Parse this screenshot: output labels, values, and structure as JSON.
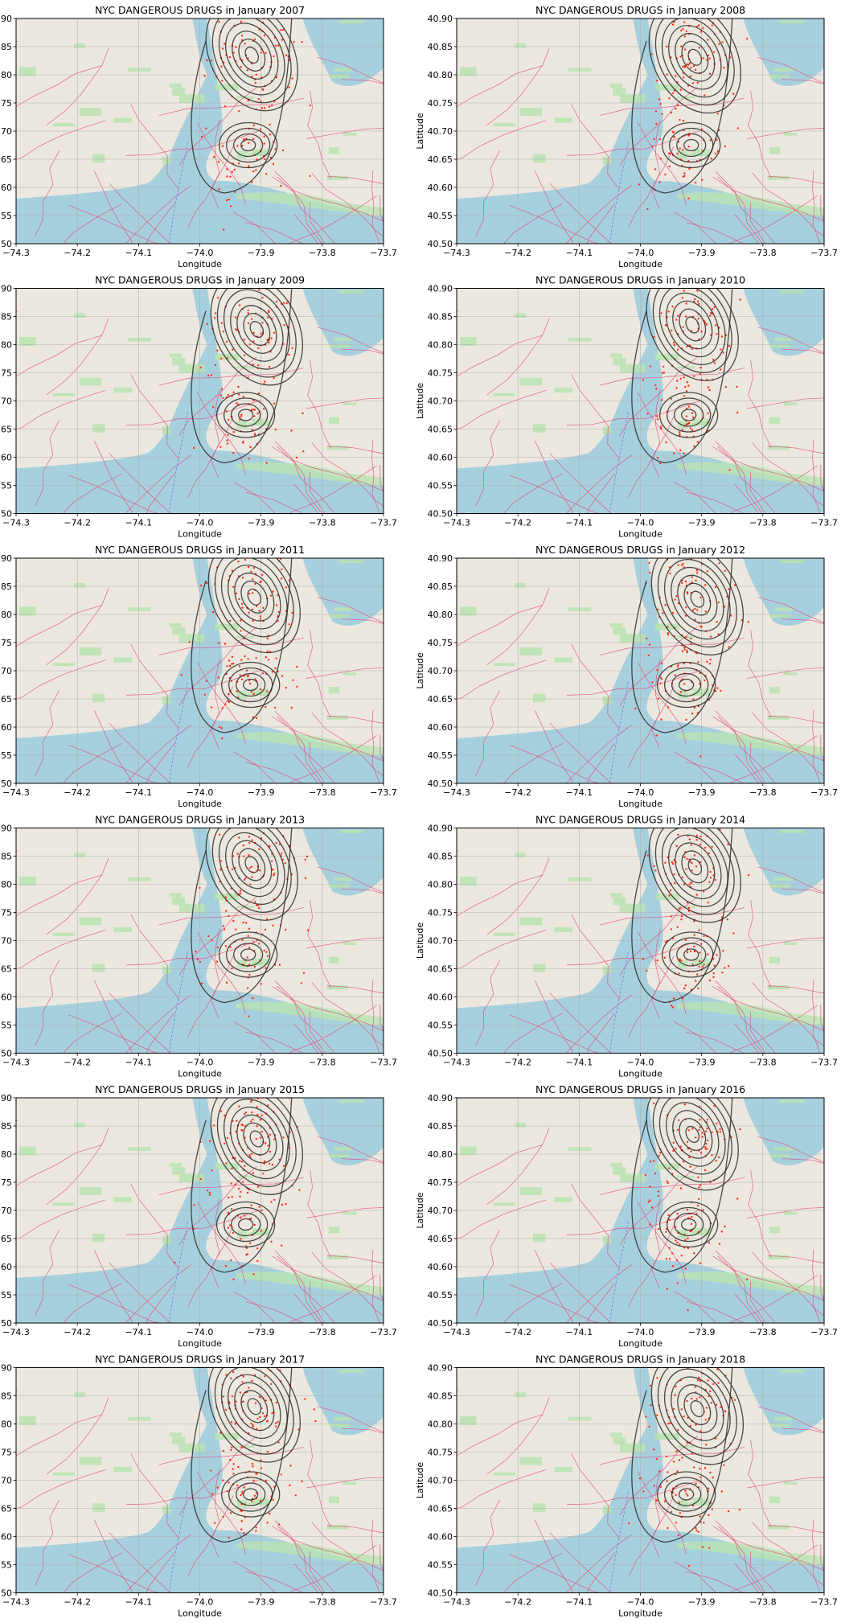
{
  "figure": {
    "x_axis": {
      "label": "Longitude",
      "range": [
        -74.3,
        -73.7
      ],
      "ticks": [
        -74.3,
        -74.2,
        -74.1,
        -74.0,
        -73.9,
        -73.8,
        -73.7
      ]
    },
    "y_axis": {
      "label": "Latitude",
      "range": [
        40.5,
        40.9
      ],
      "ticks": [
        40.5,
        40.55,
        40.6,
        40.65,
        40.7,
        40.75,
        40.8,
        40.85,
        40.9
      ]
    },
    "grid": true,
    "basemap": "openstreetmap",
    "colors": {
      "water": "#a7d0de",
      "land": "#ece8df",
      "park": "#b9e3b2",
      "roads": "#e0457a",
      "incidents": "#ff2a1a",
      "contours": "#2b2b2b"
    }
  },
  "panels": [
    {
      "title": "NYC DANGEROUS DRUGS in January 2007"
    },
    {
      "title": "NYC DANGEROUS DRUGS in January 2008"
    },
    {
      "title": "NYC DANGEROUS DRUGS in January 2009"
    },
    {
      "title": "NYC DANGEROUS DRUGS in January 2010"
    },
    {
      "title": "NYC DANGEROUS DRUGS in January 2011"
    },
    {
      "title": "NYC DANGEROUS DRUGS in January 2012"
    },
    {
      "title": "NYC DANGEROUS DRUGS in January 2013"
    },
    {
      "title": "NYC DANGEROUS DRUGS in January 2014"
    },
    {
      "title": "NYC DANGEROUS DRUGS in January 2015"
    },
    {
      "title": "NYC DANGEROUS DRUGS in January 2016"
    },
    {
      "title": "NYC DANGEROUS DRUGS in January 2017"
    },
    {
      "title": "NYC DANGEROUS DRUGS in January 2018"
    }
  ]
}
